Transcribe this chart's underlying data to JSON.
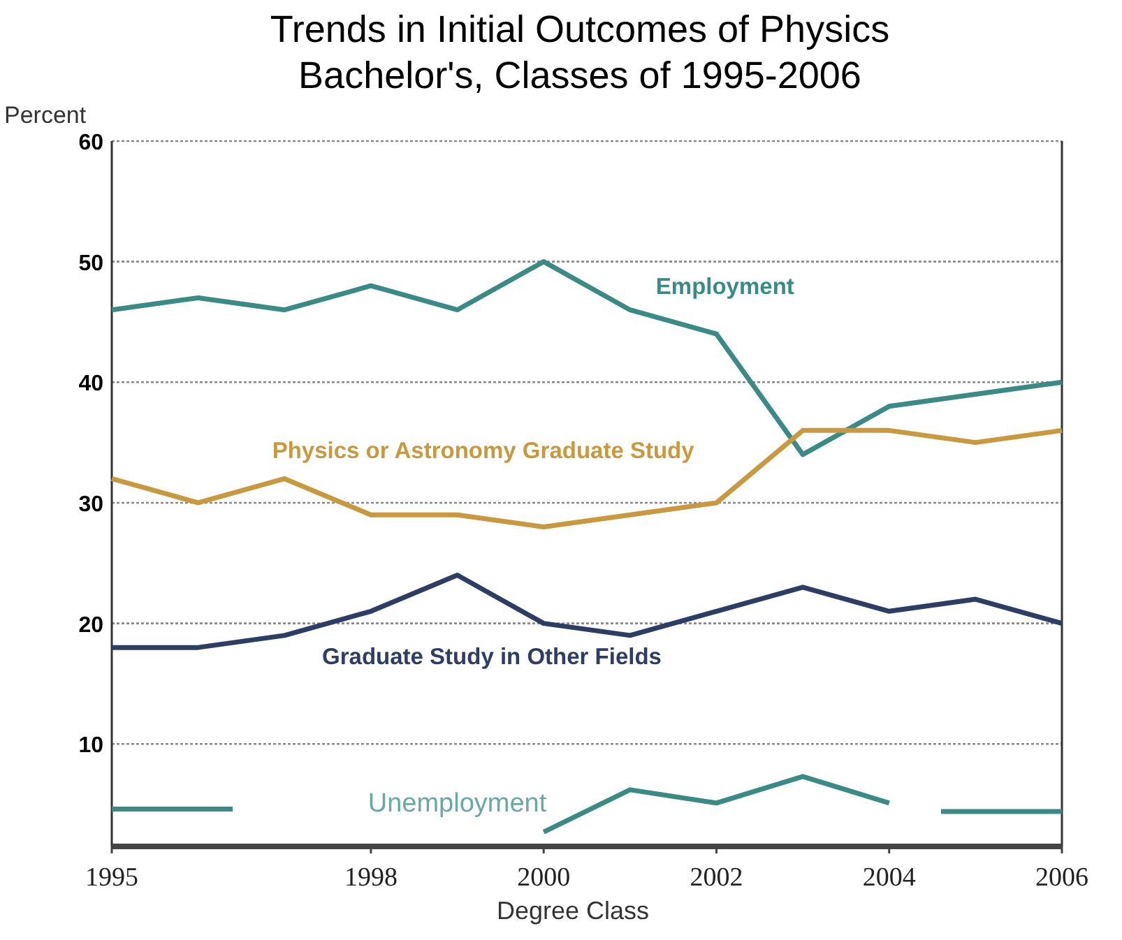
{
  "chart_data": {
    "type": "line",
    "title": "Trends in Initial Outcomes of Physics Bachelor's, Classes of 1995-2006",
    "xlabel": "Degree Class",
    "ylabel": "Percent",
    "x": [
      1995,
      1996,
      1997,
      1998,
      1999,
      2000,
      2001,
      2002,
      2003,
      2004,
      2005,
      2006
    ],
    "xlim": [
      1995,
      2006
    ],
    "xticks": [
      1995,
      1998,
      2000,
      2002,
      2004,
      2006
    ],
    "ylim": [
      1.5,
      60
    ],
    "yticks": [
      10,
      20,
      30,
      40,
      50,
      60
    ],
    "grid": "y",
    "legend": false,
    "marker": "none",
    "line_style": "solid",
    "series": [
      {
        "name": "Employment",
        "color": "#3a8a86",
        "values": [
          46,
          47,
          46,
          48,
          46,
          50,
          46,
          44,
          34,
          38,
          39,
          40
        ]
      },
      {
        "name": "Physics or Astronomy Graduate Study",
        "color": "#c9993f",
        "values": [
          32,
          30,
          32,
          29,
          29,
          28,
          29,
          30,
          36,
          36,
          35,
          36
        ]
      },
      {
        "name": "Graduate Study in Other Fields",
        "color": "#2e3d63",
        "values": [
          18,
          18,
          19,
          21,
          24,
          20,
          19,
          21,
          23,
          21,
          22,
          20
        ]
      },
      {
        "name": "Unemployment",
        "color": "#3a8a86",
        "x": [
          1995,
          1996.4,
          1998,
          2000,
          2001,
          2002,
          2003,
          2004,
          2004.3,
          2004.6,
          2006
        ],
        "values": [
          4.6,
          4.6,
          null,
          2.7,
          6.2,
          5.1,
          7.3,
          5.1,
          null,
          4.4,
          4.4
        ]
      }
    ]
  }
}
